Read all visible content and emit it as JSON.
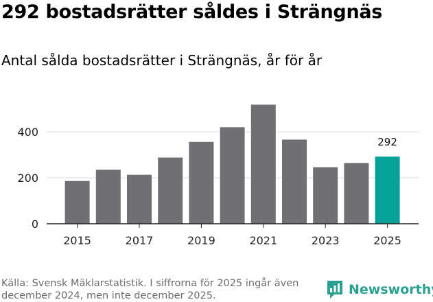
{
  "title": "292 bostadsrätter såldes i Strängnäs",
  "subtitle": "Antal sålda bostadsrätter i Strängnäs, år för år",
  "footer": "Källa: Svensk Mäklarstatistik. I siffrorna för 2025 ingår även december 2024, men inte december 2025.",
  "brand": {
    "name": "Newsworthy",
    "icon": "newsworthy-logo-icon",
    "color": "#2b9f90"
  },
  "colors": {
    "bar": "#707074",
    "highlight": "#06a299",
    "grid": "#dddddd",
    "axis": "#222222"
  },
  "chart_data": {
    "type": "bar",
    "title": "Antal sålda bostadsrätter i Strängnäs, år för år",
    "xlabel": "",
    "ylabel": "",
    "categories": [
      "2015",
      "2016",
      "2017",
      "2018",
      "2019",
      "2020",
      "2021",
      "2022",
      "2023",
      "2024",
      "2025"
    ],
    "values": [
      186,
      235,
      213,
      288,
      356,
      420,
      518,
      366,
      246,
      264,
      292
    ],
    "highlight_index": 10,
    "data_labels": [
      {
        "index": 10,
        "text": "292"
      }
    ],
    "x_tick_labels": [
      "2015",
      "2017",
      "2019",
      "2021",
      "2023",
      "2025"
    ],
    "y_ticks": [
      0,
      200,
      400
    ],
    "ylim": [
      0,
      520
    ],
    "grid": true
  }
}
